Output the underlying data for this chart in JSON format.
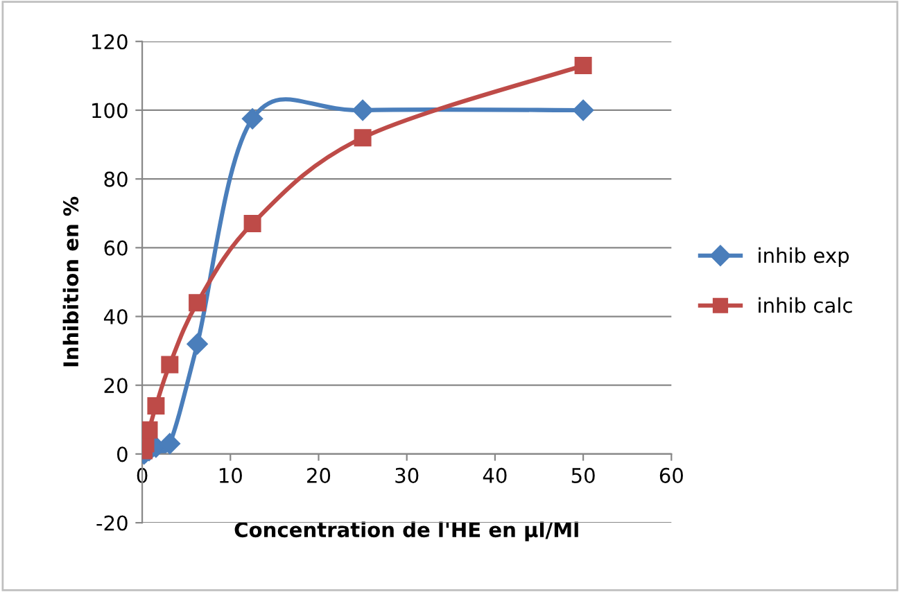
{
  "chart_data": {
    "type": "line",
    "xlabel": "Concentration de l'HE en µl/Ml",
    "ylabel": "Inhibition en %",
    "xlim": [
      0,
      60
    ],
    "xticks": [
      0,
      10,
      20,
      30,
      40,
      50,
      60
    ],
    "ylim": [
      -20,
      120
    ],
    "yticks": [
      -20,
      0,
      20,
      40,
      60,
      80,
      100,
      120
    ],
    "grid": "y",
    "legend": "right",
    "line_style": "solid",
    "series": [
      {
        "name": "inhib exp",
        "color": "#4a7ebb",
        "marker": "diamond",
        "x": [
          0.195,
          0.39,
          0.78,
          1.56,
          3.125,
          6.25,
          12.5,
          25,
          50
        ],
        "values": [
          0,
          0.5,
          1,
          2,
          3,
          32,
          97.5,
          100,
          100
        ]
      },
      {
        "name": "inhib calc",
        "color": "#be4b48",
        "marker": "square",
        "x": [
          0.195,
          0.39,
          0.78,
          1.56,
          3.125,
          6.25,
          12.5,
          25,
          50
        ],
        "values": [
          1,
          3,
          7,
          14,
          26,
          44,
          67,
          92,
          113
        ]
      }
    ]
  }
}
